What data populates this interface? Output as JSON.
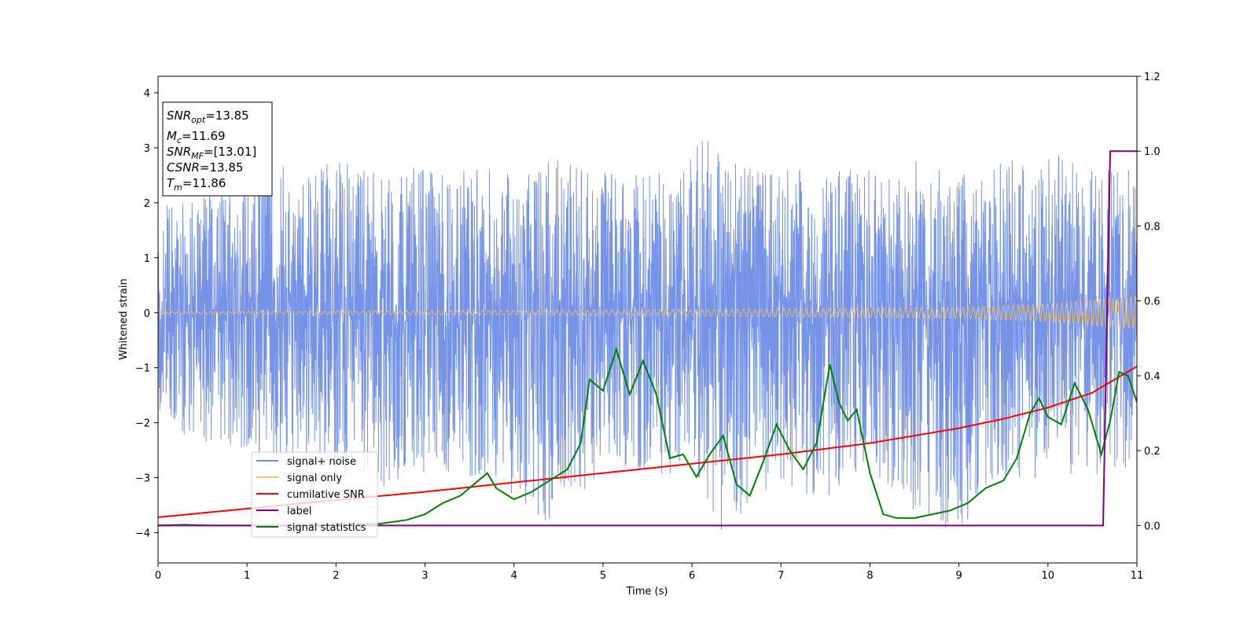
{
  "chart_data": {
    "type": "line",
    "xlabel": "Time (s)",
    "ylabel": "Whitened strain",
    "xlim": [
      0,
      11
    ],
    "ylim": [
      -4.55,
      4.3
    ],
    "y2lim": [
      -0.1,
      1.2
    ],
    "x_ticks": [
      "0",
      "1",
      "2",
      "3",
      "4",
      "5",
      "6",
      "7",
      "8",
      "9",
      "10",
      "11"
    ],
    "y_ticks": [
      "4",
      "3",
      "2",
      "1",
      "0",
      "−1",
      "−2",
      "−3",
      "−4"
    ],
    "y2_ticks": [
      "1.2",
      "1.0",
      "0.8",
      "0.6",
      "0.4",
      "0.2",
      "0.0"
    ],
    "grid": false,
    "legend_position": "lower-left",
    "annotations": {
      "snr_opt": {
        "base": "SNR",
        "sub": "opt",
        "value": "=13.85"
      },
      "mc": {
        "base": "M",
        "sub": "c",
        "value": "=11.69"
      },
      "snr_mf": {
        "base": "SNR",
        "sub": "MF",
        "value": "=[13.01]"
      },
      "csnr": {
        "base": "CSNR",
        "sub": "",
        "value": "=13.85"
      },
      "tm": {
        "base": "T",
        "sub": "m",
        "value": "=11.86"
      }
    },
    "series": [
      {
        "name": "signal+ noise",
        "axis": "left",
        "color": "#6f8de6",
        "description": "whitened noise with signal, amplitude envelope",
        "upper_envelope": [
          [
            0,
            1.9
          ],
          [
            0.5,
            2.2
          ],
          [
            1,
            2.5
          ],
          [
            1.2,
            3.9
          ],
          [
            1.5,
            2.3
          ],
          [
            2,
            2.8
          ],
          [
            2.5,
            2.5
          ],
          [
            3,
            2.7
          ],
          [
            3.5,
            2.6
          ],
          [
            4,
            2.6
          ],
          [
            4.5,
            2.8
          ],
          [
            5,
            2.6
          ],
          [
            5.5,
            2.5
          ],
          [
            6,
            3.0
          ],
          [
            6.2,
            3.35
          ],
          [
            6.5,
            2.7
          ],
          [
            7,
            2.6
          ],
          [
            7.5,
            2.6
          ],
          [
            8,
            2.6
          ],
          [
            8.5,
            2.8
          ],
          [
            9,
            2.5
          ],
          [
            9.5,
            2.9
          ],
          [
            10,
            2.9
          ],
          [
            10.5,
            2.8
          ],
          [
            11,
            2.6
          ]
        ],
        "lower_envelope": [
          [
            0,
            -2.0
          ],
          [
            0.5,
            -2.4
          ],
          [
            1,
            -2.6
          ],
          [
            1.5,
            -2.8
          ],
          [
            2,
            -3.0
          ],
          [
            2.5,
            -3.2
          ],
          [
            3,
            -2.9
          ],
          [
            4,
            -3.3
          ],
          [
            4.4,
            -3.85
          ],
          [
            5,
            -2.9
          ],
          [
            6,
            -3.0
          ],
          [
            6.35,
            -4.0
          ],
          [
            7,
            -3.1
          ],
          [
            7.5,
            -3.5
          ],
          [
            8,
            -2.9
          ],
          [
            8.9,
            -4.15
          ],
          [
            9.5,
            -3.0
          ],
          [
            10,
            -3.3
          ],
          [
            10.5,
            -3.0
          ],
          [
            11,
            -2.8
          ]
        ]
      },
      {
        "name": "signal only",
        "axis": "left",
        "color": "#f5c366",
        "description": "chirp signal, amplitude grows toward end",
        "amplitude": [
          [
            0,
            0.02
          ],
          [
            5,
            0.05
          ],
          [
            9,
            0.1
          ],
          [
            10,
            0.16
          ],
          [
            11,
            0.3
          ]
        ]
      },
      {
        "name": "cumilative SNR",
        "axis": "right",
        "color": "#ff0000",
        "x": [
          0,
          1,
          2,
          3,
          4,
          5,
          6,
          7,
          8,
          9,
          9.5,
          10,
          10.5,
          11
        ],
        "y": [
          0.022,
          0.045,
          0.068,
          0.09,
          0.115,
          0.14,
          0.165,
          0.19,
          0.22,
          0.26,
          0.285,
          0.315,
          0.355,
          0.425
        ]
      },
      {
        "name": "label",
        "axis": "right",
        "color": "#800080",
        "x": [
          0,
          10.62,
          10.7,
          11
        ],
        "y": [
          0.0,
          0.0,
          1.0,
          1.0
        ]
      },
      {
        "name": "signal statistics",
        "axis": "right",
        "color": "#008000",
        "x": [
          0,
          0.3,
          0.6,
          1,
          1.5,
          2,
          2.5,
          2.8,
          3,
          3.2,
          3.4,
          3.6,
          3.7,
          3.8,
          4.0,
          4.2,
          4.4,
          4.6,
          4.75,
          4.85,
          5.0,
          5.15,
          5.3,
          5.45,
          5.6,
          5.75,
          5.9,
          6.05,
          6.2,
          6.35,
          6.5,
          6.65,
          6.8,
          6.95,
          7.1,
          7.25,
          7.4,
          7.55,
          7.65,
          7.75,
          7.85,
          8.0,
          8.15,
          8.3,
          8.5,
          8.7,
          8.9,
          9.1,
          9.3,
          9.5,
          9.65,
          9.8,
          9.9,
          10.0,
          10.15,
          10.3,
          10.45,
          10.6,
          10.7,
          10.8,
          10.9,
          11.0
        ],
        "y": [
          0.0,
          0.002,
          0.0,
          0.0,
          0.0,
          0.001,
          0.005,
          0.015,
          0.03,
          0.06,
          0.08,
          0.12,
          0.14,
          0.1,
          0.07,
          0.09,
          0.12,
          0.15,
          0.22,
          0.39,
          0.36,
          0.47,
          0.35,
          0.44,
          0.35,
          0.18,
          0.19,
          0.13,
          0.19,
          0.24,
          0.11,
          0.08,
          0.17,
          0.27,
          0.2,
          0.15,
          0.22,
          0.43,
          0.33,
          0.28,
          0.31,
          0.14,
          0.03,
          0.02,
          0.02,
          0.03,
          0.04,
          0.06,
          0.1,
          0.12,
          0.18,
          0.3,
          0.34,
          0.29,
          0.27,
          0.38,
          0.31,
          0.19,
          0.28,
          0.41,
          0.4,
          0.33
        ]
      }
    ]
  }
}
